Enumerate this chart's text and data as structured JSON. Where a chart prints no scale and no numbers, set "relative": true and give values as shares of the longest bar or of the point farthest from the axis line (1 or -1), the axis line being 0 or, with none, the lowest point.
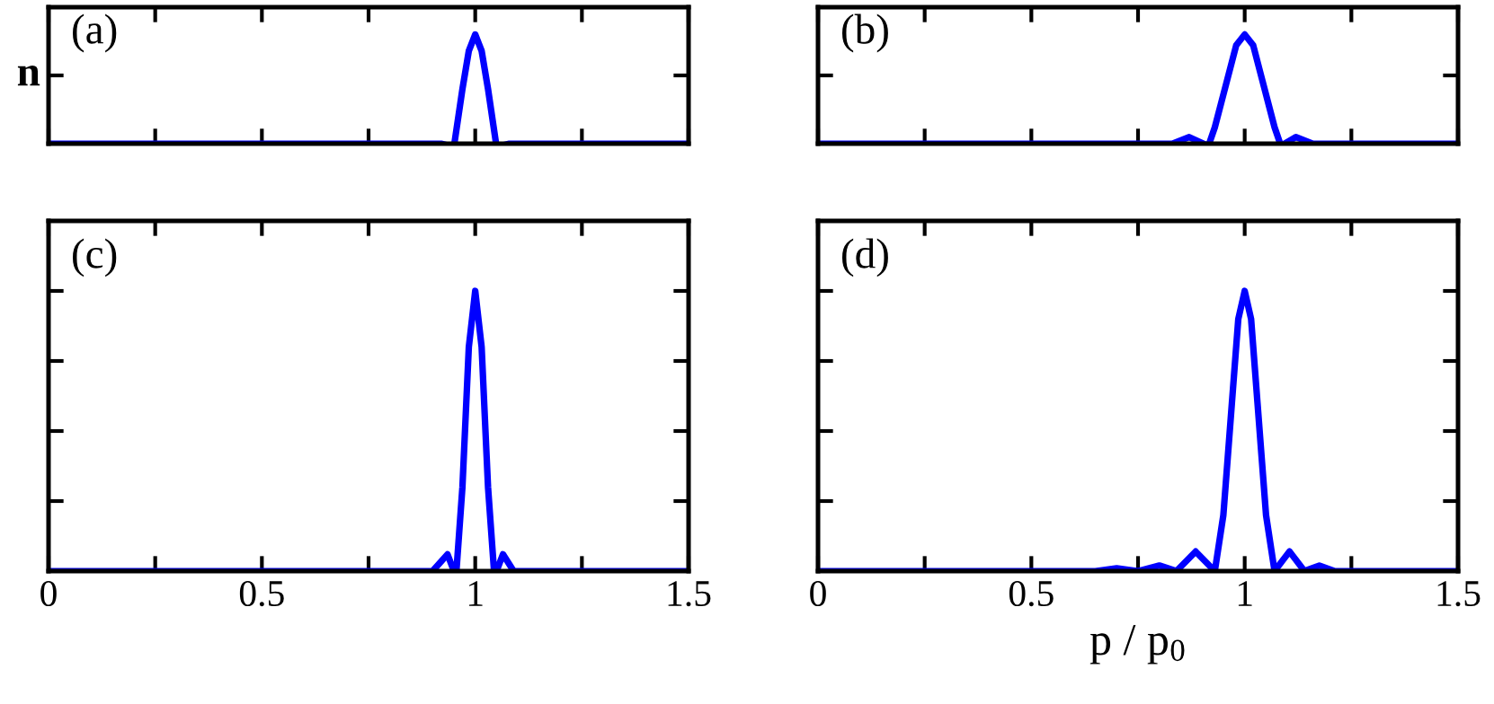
{
  "chart_data": [
    {
      "type": "line",
      "ylabel": "n",
      "annotations": [
        "(a)"
      ],
      "relative": true,
      "tick_labels": false,
      "xlim": [
        0,
        1.5
      ],
      "xticks": [
        0,
        {
          "value": 0.25,
          "label": null
        },
        0.5,
        {
          "value": 0.75,
          "label": null
        },
        1,
        {
          "value": 1.25,
          "label": null
        },
        1.5
      ],
      "grid": false,
      "legend": false,
      "series": [
        {
          "color": "#0000ff",
          "x": [
            0,
            0.92,
            0.95,
            0.97,
            0.985,
            1.0,
            1.015,
            1.03,
            1.05,
            1.08,
            1.5
          ],
          "values": [
            0,
            0,
            -0.03,
            0.5,
            0.85,
            1,
            0.85,
            0.5,
            -0.03,
            0,
            0
          ]
        }
      ]
    },
    {
      "type": "line",
      "annotations": [
        "(b)"
      ],
      "relative": true,
      "tick_labels": false,
      "xlim": [
        0,
        1.5
      ],
      "xticks": [
        0,
        {
          "value": 0.25,
          "label": null
        },
        0.5,
        {
          "value": 0.75,
          "label": null
        },
        1,
        {
          "value": 1.25,
          "label": null
        },
        1.5
      ],
      "grid": false,
      "legend": false,
      "series": [
        {
          "color": "#0000ff",
          "x": [
            0,
            0.83,
            0.87,
            0.915,
            0.93,
            0.96,
            0.98,
            1.0,
            1.02,
            1.04,
            1.07,
            1.085,
            1.12,
            1.16,
            1.5
          ],
          "values": [
            0,
            0,
            0.06,
            -0.02,
            0.15,
            0.6,
            0.9,
            1,
            0.9,
            0.6,
            0.15,
            -0.02,
            0.06,
            0,
            0
          ]
        }
      ]
    },
    {
      "type": "line",
      "annotations": [
        "(c)"
      ],
      "relative": true,
      "tick_labels": "x",
      "xlim": [
        0,
        1.5
      ],
      "xticks": [
        0,
        {
          "value": 0.25,
          "label": null
        },
        0.5,
        {
          "value": 0.75,
          "label": null
        },
        1,
        {
          "value": 1.25,
          "label": null
        },
        1.5
      ],
      "grid": false,
      "legend": false,
      "series": [
        {
          "color": "#0000ff",
          "x": [
            0,
            0.9,
            0.935,
            0.955,
            0.97,
            0.985,
            1.0,
            1.015,
            1.03,
            1.045,
            1.065,
            1.09,
            1.5
          ],
          "values": [
            0,
            0,
            0.06,
            -0.02,
            0.3,
            0.8,
            1,
            0.8,
            0.3,
            -0.02,
            0.06,
            0,
            0
          ]
        }
      ]
    },
    {
      "type": "line",
      "xlabel": "p / p$_{0}$",
      "annotations": [
        "(d)"
      ],
      "relative": true,
      "tick_labels": "x",
      "xlim": [
        0,
        1.5
      ],
      "xticks": [
        0,
        {
          "value": 0.25,
          "label": null
        },
        0.5,
        {
          "value": 0.75,
          "label": null
        },
        1,
        {
          "value": 1.25,
          "label": null
        },
        1.5
      ],
      "grid": false,
      "legend": false,
      "series": [
        {
          "color": "#0000ff",
          "x": [
            0,
            0.65,
            0.7,
            0.75,
            0.8,
            0.84,
            0.885,
            0.93,
            0.95,
            0.97,
            0.985,
            1.0,
            1.015,
            1.03,
            1.05,
            1.07,
            1.105,
            1.14,
            1.175,
            1.21,
            1.5
          ],
          "values": [
            0,
            0,
            0.01,
            0,
            0.02,
            0,
            0.07,
            0,
            0.2,
            0.6,
            0.9,
            1,
            0.9,
            0.6,
            0.2,
            0,
            0.07,
            0,
            0.02,
            0,
            0
          ]
        }
      ]
    }
  ]
}
